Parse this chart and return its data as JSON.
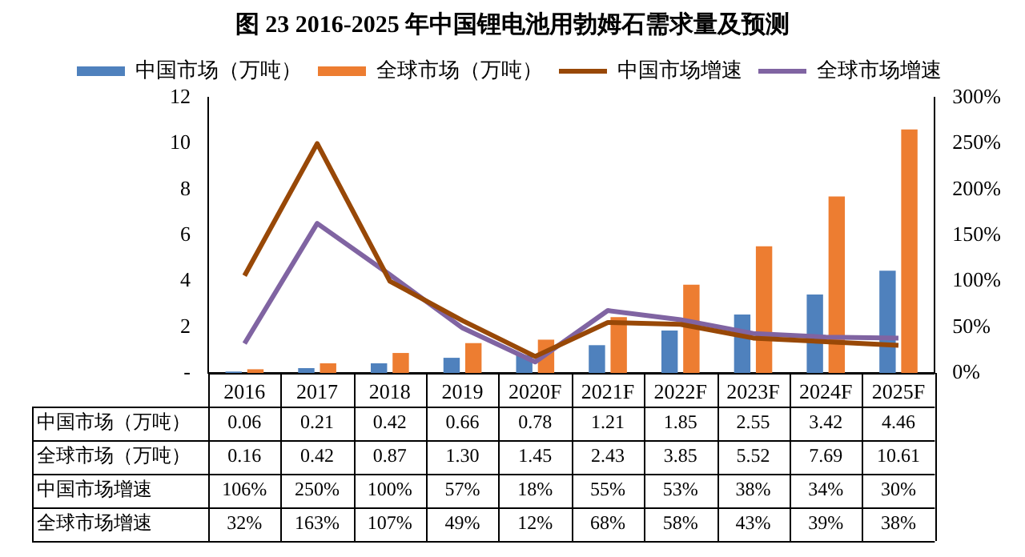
{
  "chart_data": {
    "type": "bar",
    "title": "图  23 2016-2025 年中国锂电池用勃姆石需求量及预测",
    "categories": [
      "2016",
      "2017",
      "2018",
      "2019",
      "2020F",
      "2021F",
      "2022F",
      "2023F",
      "2024F",
      "2025F"
    ],
    "series": [
      {
        "name": "中国市场（万吨）",
        "color": "#4f81bd",
        "values": [
          0.06,
          0.21,
          0.42,
          0.66,
          0.78,
          1.21,
          1.85,
          2.55,
          3.42,
          4.46
        ],
        "value_labels": [
          "0.06",
          "0.21",
          "0.42",
          "0.66",
          "0.78",
          "1.21",
          "1.85",
          "2.55",
          "3.42",
          "4.46"
        ]
      },
      {
        "name": "全球市场（万吨）",
        "color": "#ed7d31",
        "values": [
          0.16,
          0.42,
          0.87,
          1.3,
          1.45,
          2.43,
          3.85,
          5.52,
          7.69,
          10.61
        ],
        "value_labels": [
          "0.16",
          "0.42",
          "0.87",
          "1.30",
          "1.45",
          "2.43",
          "3.85",
          "5.52",
          "7.69",
          "10.61"
        ]
      },
      {
        "name": "中国市场增速",
        "type": "line",
        "axis": "y2",
        "color": "#984807",
        "values": [
          106,
          250,
          100,
          57,
          18,
          55,
          53,
          38,
          34,
          30
        ],
        "value_labels": [
          "106%",
          "250%",
          "100%",
          "57%",
          "18%",
          "55%",
          "53%",
          "38%",
          "34%",
          "30%"
        ]
      },
      {
        "name": "全球市场增速",
        "type": "line",
        "axis": "y2",
        "color": "#8064a2",
        "values": [
          32,
          163,
          107,
          49,
          12,
          68,
          58,
          43,
          39,
          38
        ],
        "value_labels": [
          "32%",
          "163%",
          "107%",
          "49%",
          "12%",
          "68%",
          "58%",
          "43%",
          "39%",
          "38%"
        ]
      }
    ],
    "ylim": [
      0,
      12
    ],
    "yticks": [
      {
        "value": 0,
        "label": "-"
      },
      2,
      4,
      6,
      8,
      10,
      12
    ],
    "y2lim": [
      0,
      300
    ],
    "y2ticks": [
      {
        "value": 0,
        "label": "0%"
      },
      {
        "value": 50,
        "label": "50%"
      },
      {
        "value": 100,
        "label": "100%"
      },
      {
        "value": 150,
        "label": "150%"
      },
      {
        "value": 200,
        "label": "200%"
      },
      {
        "value": 250,
        "label": "250%"
      },
      {
        "value": 300,
        "label": "300%"
      }
    ],
    "legend": "top",
    "grid": false,
    "marker": "none",
    "line_style": "solid"
  }
}
